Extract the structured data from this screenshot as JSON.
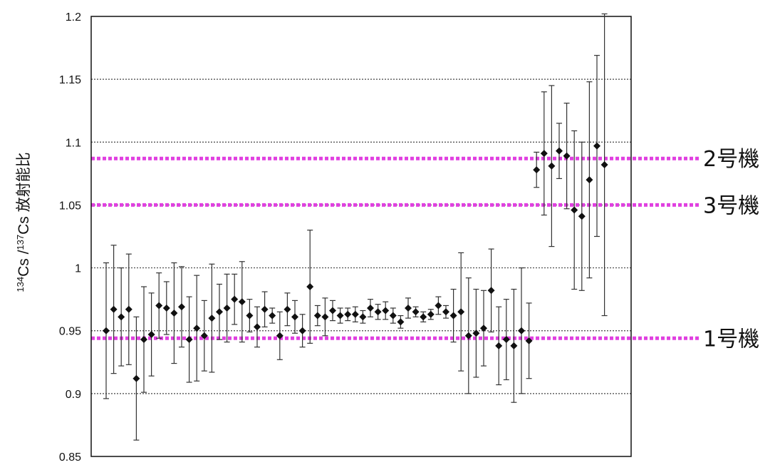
{
  "chart_data": {
    "type": "scatter",
    "title": "",
    "xlabel": "",
    "ylabel": {
      "sup1": "134",
      "base1": "Cs",
      "sep": " /",
      "sup2": "137",
      "base2": "Cs",
      "suffix": " 放射能比"
    },
    "ylim": [
      0.85,
      1.2
    ],
    "yticks": [
      "0.85",
      "0.9",
      "0.95",
      "1",
      "1.05",
      "1.1",
      "1.15",
      "1.2"
    ],
    "ytick_values": [
      0.85,
      0.9,
      0.95,
      1.0,
      1.05,
      1.1,
      1.15,
      1.2
    ],
    "grid": true,
    "x_tick_labels": false,
    "series": [
      {
        "values": [
          0.95,
          0.967,
          0.961,
          0.967,
          0.912,
          0.943,
          0.947,
          0.97,
          0.968,
          0.964,
          0.969,
          0.943,
          0.952,
          0.946,
          0.96,
          0.965,
          0.968,
          0.975,
          0.973,
          0.962,
          0.953,
          0.967,
          0.962,
          0.946,
          0.967,
          0.961,
          0.95,
          0.985,
          0.962,
          0.961,
          0.966,
          0.962,
          0.963,
          0.963,
          0.961,
          0.968,
          0.965,
          0.966,
          0.962,
          0.957,
          0.968,
          0.965,
          0.961,
          0.963,
          0.97,
          0.965,
          0.962,
          0.965,
          0.946,
          0.948,
          0.952,
          0.982,
          0.938,
          0.943,
          0.938,
          0.95,
          0.942,
          1.078,
          1.091,
          1.081,
          1.093,
          1.089,
          1.046,
          1.041,
          1.07,
          1.097,
          1.082
        ],
        "errors": [
          0.054,
          0.051,
          0.039,
          0.044,
          0.049,
          0.042,
          0.033,
          0.026,
          0.021,
          0.04,
          0.032,
          0.034,
          0.042,
          0.028,
          0.043,
          0.022,
          0.027,
          0.02,
          0.032,
          0.013,
          0.016,
          0.014,
          0.006,
          0.019,
          0.013,
          0.013,
          0.013,
          0.045,
          0.008,
          0.015,
          0.008,
          0.006,
          0.005,
          0.006,
          0.005,
          0.007,
          0.006,
          0.007,
          0.006,
          0.005,
          0.008,
          0.004,
          0.004,
          0.004,
          0.007,
          0.005,
          0.021,
          0.047,
          0.046,
          0.035,
          0.03,
          0.033,
          0.031,
          0.032,
          0.045,
          0.05,
          0.03,
          0.014,
          0.049,
          0.064,
          0.022,
          0.042,
          0.063,
          0.059,
          0.078,
          0.072,
          0.12
        ]
      }
    ],
    "reference_lines": [
      {
        "label": "2号機",
        "value": 1.087,
        "color": "#e040e0"
      },
      {
        "label": "3号機",
        "value": 1.05,
        "color": "#e040e0"
      },
      {
        "label": "1号機",
        "value": 0.944,
        "color": "#e040e0"
      }
    ],
    "marker_color": "#111111",
    "grid_color": "#444444"
  }
}
